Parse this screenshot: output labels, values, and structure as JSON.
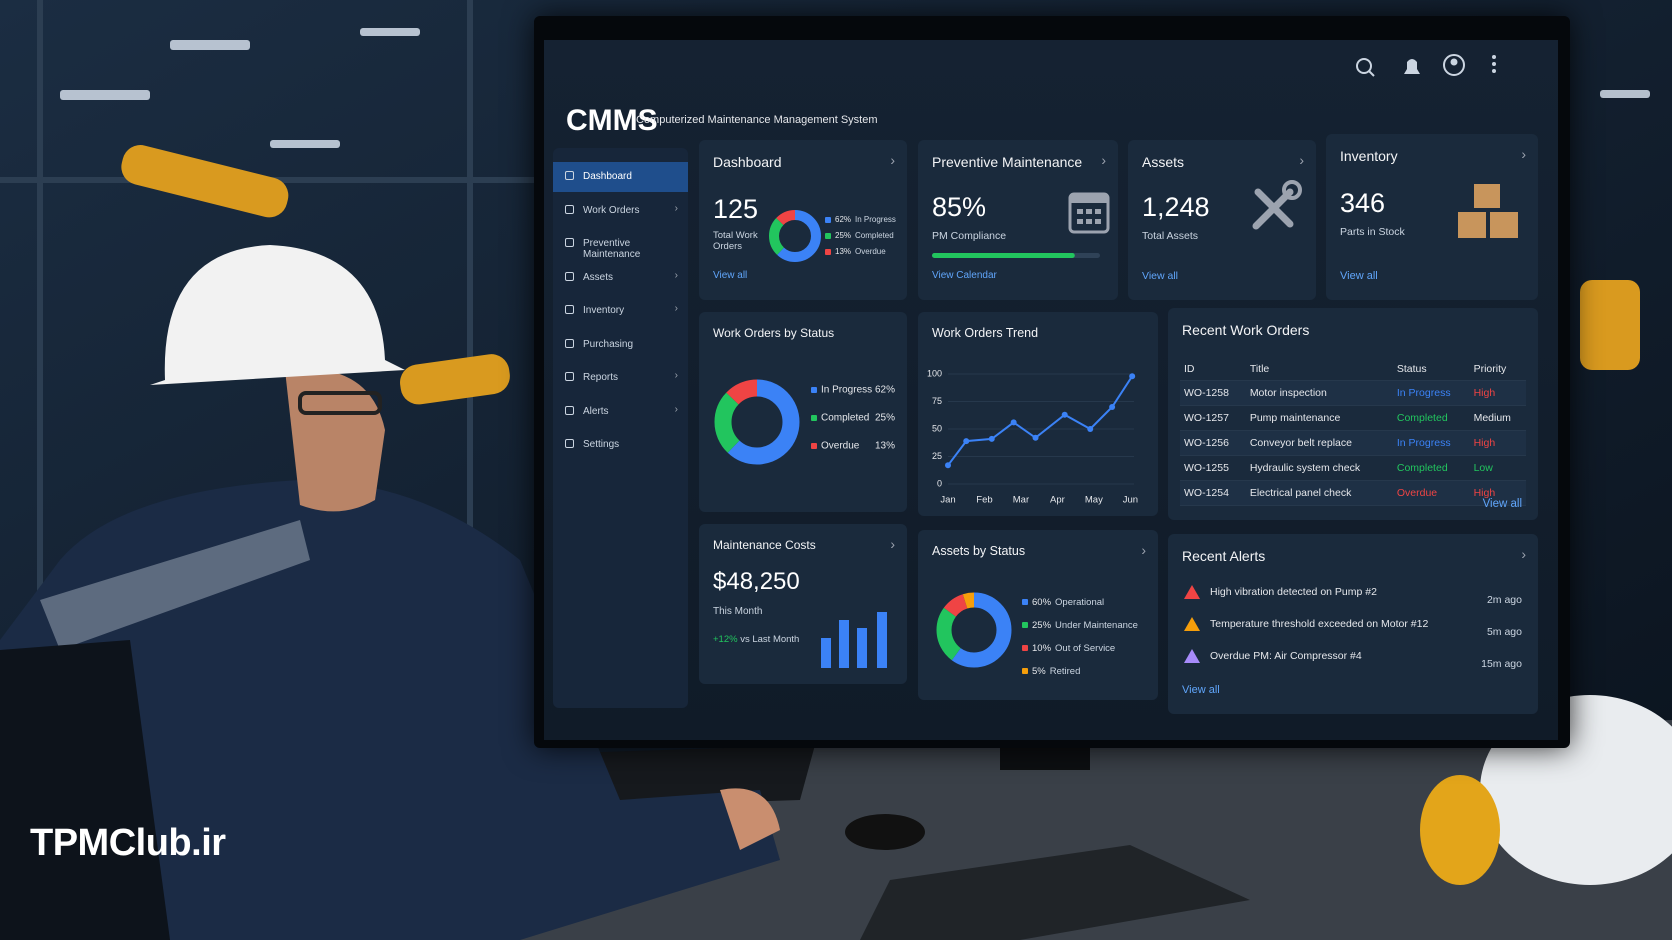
{
  "header": {
    "title": "CMMS",
    "subtitle": "Computerized Maintenance Management System"
  },
  "sidebar": {
    "items": [
      "Dashboard",
      "Work Orders",
      "Preventive Maintenance",
      "Assets",
      "Inventory",
      "Purchasing",
      "Reports",
      "Alerts",
      "Settings"
    ]
  },
  "dashboard_card": {
    "title": "Dashboard",
    "value": 125,
    "label": "Total Work Orders",
    "link": "View all",
    "chart_data": {
      "type": "donut",
      "categories": [
        "In Progress",
        "Completed",
        "Overdue"
      ],
      "values": [
        62,
        25,
        13
      ],
      "value_labels": [
        "62%",
        "25%",
        "13%"
      ],
      "colors": [
        "#3b82f6",
        "#22c55e",
        "#ef4444"
      ]
    }
  },
  "pm_card": {
    "title": "Preventive Maintenance",
    "compliance": 85,
    "compliance_label": "85%",
    "label": "PM Compliance",
    "link": "View Calendar",
    "bar_color": "#22c55e"
  },
  "assets_card": {
    "title": "Assets",
    "value": "1,248",
    "label": "Total Assets",
    "link": "View all"
  },
  "inventory_card": {
    "title": "Inventory",
    "value": 346,
    "label": "Parts in Stock",
    "link": "View all"
  },
  "wo_status": {
    "title": "Work Orders by Status",
    "chart_data": {
      "type": "donut",
      "categories": [
        "In Progress",
        "Completed",
        "Overdue"
      ],
      "values": [
        62,
        25,
        13
      ],
      "value_labels": [
        "62%",
        "25%",
        "13%"
      ],
      "colors": [
        "#3b82f6",
        "#22c55e",
        "#ef4444"
      ]
    }
  },
  "trend": {
    "title": "Work Orders Trend",
    "chart_data": {
      "type": "line",
      "x": [
        0,
        0.5,
        1.2,
        1.8,
        2.4,
        3.2,
        3.9,
        4.5,
        5.05
      ],
      "values": [
        17,
        39,
        41,
        56,
        42,
        63,
        50,
        70,
        98
      ],
      "color": "#3b82f6",
      "xlim": [
        0,
        5.1
      ],
      "xticks": [
        {
          "value": 0,
          "label": "Jan"
        },
        {
          "value": 1,
          "label": "Feb"
        },
        {
          "value": 2,
          "label": "Mar"
        },
        {
          "value": 3,
          "label": "Apr"
        },
        {
          "value": 4,
          "label": "May"
        },
        {
          "value": 5,
          "label": "Jun"
        }
      ],
      "ylim": [
        0,
        100
      ],
      "yticks": [
        0,
        25,
        50,
        75,
        100
      ]
    }
  },
  "recent_work_orders": {
    "title": "Recent Work Orders",
    "columns": [
      "ID",
      "Title",
      "Status",
      "Priority"
    ],
    "rows": [
      [
        "WO-1258",
        "Motor inspection",
        "In Progress",
        "High"
      ],
      [
        "WO-1257",
        "Pump maintenance",
        "Completed",
        "Medium"
      ],
      [
        "WO-1256",
        "Conveyor belt replace",
        "In Progress",
        "High"
      ],
      [
        "WO-1255",
        "Hydraulic system check",
        "Completed",
        "Low"
      ],
      [
        "WO-1254",
        "Electrical panel check",
        "Overdue",
        "High"
      ]
    ],
    "row_colors": [
      [
        "#3b82f6",
        "#ef4444"
      ],
      [
        "#22c55e",
        "#e5e7eb"
      ],
      [
        "#3b82f6",
        "#ef4444"
      ],
      [
        "#22c55e",
        "#22c55e"
      ],
      [
        "#ef4444",
        "#ef4444"
      ]
    ],
    "link": "View all"
  },
  "costs": {
    "title": "Maintenance Costs",
    "value": "$48,250",
    "period": "This Month",
    "change": "+12%",
    "change_label": "vs Last Month"
  },
  "assets_status": {
    "title": "Assets by Status",
    "chart_data": {
      "type": "donut",
      "categories": [
        "Operational",
        "Under Maintenance",
        "Out of Service",
        "Retired"
      ],
      "values": [
        60,
        25,
        10,
        5
      ],
      "value_labels": [
        "60%",
        "25%",
        "10%",
        "5%"
      ],
      "colors": [
        "#3b82f6",
        "#22c55e",
        "#ef4444",
        "#f59e0b"
      ]
    }
  },
  "recent_alerts": {
    "title": "Recent Alerts",
    "items": [
      {
        "text": "High vibration detected on Pump #2",
        "time": "2m ago",
        "color": "#ef4444"
      },
      {
        "text": "Temperature threshold exceeded on Motor #12",
        "time": "5m ago",
        "color": "#f59e0b"
      },
      {
        "text": "Overdue PM: Air Compressor #4",
        "time": "15m ago",
        "color": "#a78bfa"
      }
    ],
    "link": "View all"
  },
  "watermark": "TPMClub.ir"
}
